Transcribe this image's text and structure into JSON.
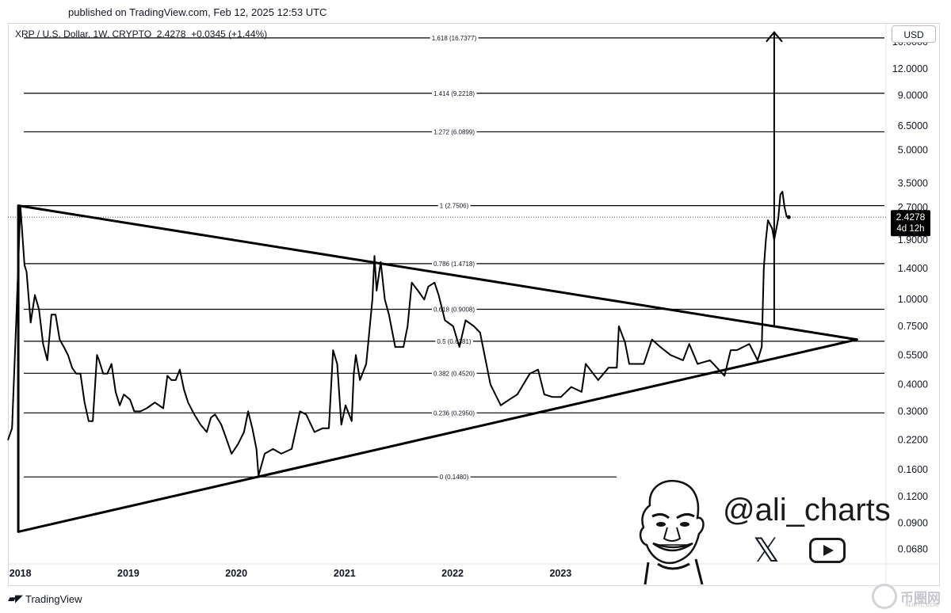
{
  "header": {
    "published": "published on TradingView.com, Feb 12, 2025 12:53 UTC"
  },
  "legend": {
    "symbol": "XRP / U.S. Dollar, 1W, CRYPTO",
    "price": "2.4278",
    "change": "+0.0345 (+1.44%)"
  },
  "currency_button": "USD",
  "footer": {
    "logo_text": "TradingView",
    "watermark_text": "币圈网",
    "watermark_sub": "ALIBTC.COM"
  },
  "author": {
    "handle": "@ali_charts",
    "x_glyph": "𝕏",
    "icons": [
      "avatar-icon",
      "x-logo-icon",
      "youtube-icon"
    ]
  },
  "chart_data": {
    "type": "line",
    "title": "",
    "y_scale": "log",
    "ylim": [
      0.058,
      19.5
    ],
    "x_range": [
      "2017-11-20",
      "2026-01-05"
    ],
    "line_color": "#000000",
    "y_ticks": [
      "16.0000",
      "12.0000",
      "9.0000",
      "6.5000",
      "5.0000",
      "3.5000",
      "2.7000",
      "1.9000",
      "1.4000",
      "1.0000",
      "0.7500",
      "0.5500",
      "0.4000",
      "0.3000",
      "0.2200",
      "0.1600",
      "0.1200",
      "0.0900",
      "0.0680"
    ],
    "x_ticks": [
      "2018",
      "2019",
      "2020",
      "2021",
      "2022",
      "2023"
    ],
    "current_price_label": {
      "value": "2.4278",
      "sub": "4d 12h"
    },
    "fib_levels": [
      {
        "label": "0 (0.1480)",
        "value": 0.148
      },
      {
        "label": "0.236 (0.2950)",
        "value": 0.295
      },
      {
        "label": "0.382 (0.4520)",
        "value": 0.452
      },
      {
        "label": "0.5 (0.6381)",
        "value": 0.6381
      },
      {
        "label": "0.618 (0.9008)",
        "value": 0.9008
      },
      {
        "label": "0.786 (1.4718)",
        "value": 1.4718
      },
      {
        "label": "1 (2.7506)",
        "value": 2.7506
      },
      {
        "label": "1.272 (6.0899)",
        "value": 6.0899
      },
      {
        "label": "1.414 (9.2218)",
        "value": 9.2218
      },
      {
        "label": "1.618 (16.7377)",
        "value": 16.7377
      }
    ],
    "series": [
      {
        "points": [
          [
            "2017-11-20",
            0.22
          ],
          [
            "2017-12-04",
            0.25
          ],
          [
            "2017-12-18",
            0.8
          ],
          [
            "2018-01-01",
            2.75
          ],
          [
            "2018-01-08",
            2.0
          ],
          [
            "2018-01-15",
            1.45
          ],
          [
            "2018-01-22",
            1.35
          ],
          [
            "2018-02-05",
            0.78
          ],
          [
            "2018-02-19",
            1.05
          ],
          [
            "2018-03-05",
            0.9
          ],
          [
            "2018-03-19",
            0.62
          ],
          [
            "2018-04-02",
            0.52
          ],
          [
            "2018-04-16",
            0.85
          ],
          [
            "2018-04-30",
            0.85
          ],
          [
            "2018-05-14",
            0.65
          ],
          [
            "2018-05-28",
            0.6
          ],
          [
            "2018-06-11",
            0.55
          ],
          [
            "2018-06-25",
            0.48
          ],
          [
            "2018-07-09",
            0.45
          ],
          [
            "2018-07-23",
            0.45
          ],
          [
            "2018-08-06",
            0.33
          ],
          [
            "2018-08-20",
            0.27
          ],
          [
            "2018-09-03",
            0.27
          ],
          [
            "2018-09-17",
            0.55
          ],
          [
            "2018-09-24",
            0.52
          ],
          [
            "2018-10-08",
            0.45
          ],
          [
            "2018-10-22",
            0.45
          ],
          [
            "2018-11-05",
            0.5
          ],
          [
            "2018-11-19",
            0.37
          ],
          [
            "2018-12-03",
            0.32
          ],
          [
            "2018-12-17",
            0.36
          ],
          [
            "2019-01-07",
            0.34
          ],
          [
            "2019-01-21",
            0.3
          ],
          [
            "2019-02-11",
            0.3
          ],
          [
            "2019-03-04",
            0.31
          ],
          [
            "2019-04-01",
            0.33
          ],
          [
            "2019-04-29",
            0.31
          ],
          [
            "2019-05-13",
            0.44
          ],
          [
            "2019-05-27",
            0.42
          ],
          [
            "2019-06-10",
            0.42
          ],
          [
            "2019-06-24",
            0.47
          ],
          [
            "2019-07-08",
            0.38
          ],
          [
            "2019-07-22",
            0.33
          ],
          [
            "2019-08-12",
            0.29
          ],
          [
            "2019-09-02",
            0.26
          ],
          [
            "2019-09-23",
            0.24
          ],
          [
            "2019-10-07",
            0.28
          ],
          [
            "2019-10-21",
            0.29
          ],
          [
            "2019-11-11",
            0.26
          ],
          [
            "2019-11-25",
            0.23
          ],
          [
            "2019-12-16",
            0.19
          ],
          [
            "2020-01-06",
            0.21
          ],
          [
            "2020-01-27",
            0.24
          ],
          [
            "2020-02-10",
            0.3
          ],
          [
            "2020-02-24",
            0.25
          ],
          [
            "2020-03-09",
            0.2
          ],
          [
            "2020-03-16",
            0.15
          ],
          [
            "2020-04-06",
            0.19
          ],
          [
            "2020-05-04",
            0.2
          ],
          [
            "2020-06-01",
            0.19
          ],
          [
            "2020-07-06",
            0.2
          ],
          [
            "2020-08-03",
            0.3
          ],
          [
            "2020-08-24",
            0.29
          ],
          [
            "2020-09-21",
            0.24
          ],
          [
            "2020-10-19",
            0.25
          ],
          [
            "2020-11-09",
            0.25
          ],
          [
            "2020-11-23",
            0.58
          ],
          [
            "2020-12-07",
            0.5
          ],
          [
            "2020-12-21",
            0.26
          ],
          [
            "2021-01-04",
            0.32
          ],
          [
            "2021-01-25",
            0.27
          ],
          [
            "2021-02-01",
            0.45
          ],
          [
            "2021-02-08",
            0.55
          ],
          [
            "2021-02-22",
            0.42
          ],
          [
            "2021-03-15",
            0.5
          ],
          [
            "2021-04-05",
            1.0
          ],
          [
            "2021-04-12",
            1.6
          ],
          [
            "2021-04-19",
            1.1
          ],
          [
            "2021-05-03",
            1.5
          ],
          [
            "2021-05-17",
            1.0
          ],
          [
            "2021-05-31",
            0.85
          ],
          [
            "2021-06-21",
            0.6
          ],
          [
            "2021-07-19",
            0.6
          ],
          [
            "2021-08-02",
            0.75
          ],
          [
            "2021-08-16",
            1.2
          ],
          [
            "2021-09-06",
            1.1
          ],
          [
            "2021-09-27",
            1.0
          ],
          [
            "2021-10-11",
            1.15
          ],
          [
            "2021-11-01",
            1.2
          ],
          [
            "2021-11-15",
            1.05
          ],
          [
            "2021-12-06",
            0.8
          ],
          [
            "2022-01-03",
            0.75
          ],
          [
            "2022-01-24",
            0.6
          ],
          [
            "2022-02-14",
            0.8
          ],
          [
            "2022-03-14",
            0.75
          ],
          [
            "2022-04-04",
            0.7
          ],
          [
            "2022-05-09",
            0.4
          ],
          [
            "2022-06-13",
            0.32
          ],
          [
            "2022-07-11",
            0.34
          ],
          [
            "2022-08-08",
            0.36
          ],
          [
            "2022-09-19",
            0.45
          ],
          [
            "2022-10-17",
            0.47
          ],
          [
            "2022-11-07",
            0.36
          ],
          [
            "2022-12-05",
            0.35
          ],
          [
            "2023-01-02",
            0.35
          ],
          [
            "2023-02-06",
            0.39
          ],
          [
            "2023-03-13",
            0.37
          ],
          [
            "2023-03-27",
            0.5
          ],
          [
            "2023-05-08",
            0.42
          ],
          [
            "2023-06-12",
            0.48
          ],
          [
            "2023-07-10",
            0.48
          ],
          [
            "2023-07-17",
            0.75
          ],
          [
            "2023-08-07",
            0.63
          ],
          [
            "2023-08-21",
            0.5
          ],
          [
            "2023-10-09",
            0.5
          ],
          [
            "2023-11-06",
            0.65
          ],
          [
            "2023-12-04",
            0.6
          ],
          [
            "2024-01-08",
            0.55
          ],
          [
            "2024-02-19",
            0.52
          ],
          [
            "2024-03-11",
            0.62
          ],
          [
            "2024-04-08",
            0.5
          ],
          [
            "2024-05-20",
            0.52
          ],
          [
            "2024-07-08",
            0.44
          ],
          [
            "2024-07-29",
            0.58
          ],
          [
            "2024-08-19",
            0.58
          ],
          [
            "2024-09-30",
            0.62
          ],
          [
            "2024-10-28",
            0.52
          ],
          [
            "2024-11-11",
            0.6
          ],
          [
            "2024-11-18",
            1.4
          ],
          [
            "2024-11-25",
            1.9
          ],
          [
            "2024-12-02",
            2.35
          ],
          [
            "2024-12-16",
            2.15
          ],
          [
            "2024-12-23",
            1.9
          ],
          [
            "2025-01-06",
            2.4
          ],
          [
            "2025-01-13",
            3.1
          ],
          [
            "2025-01-20",
            3.2
          ],
          [
            "2025-01-27",
            2.7
          ],
          [
            "2025-02-03",
            2.45
          ],
          [
            "2025-02-10",
            2.4278
          ]
        ]
      }
    ],
    "annotations": {
      "triangle": [
        [
          "2017-12-25",
          2.75
        ],
        [
          "2025-09-29",
          0.65
        ],
        [
          "2017-12-25",
          0.082
        ]
      ],
      "lower_trendline": [
        [
          "2020-03-16",
          0.148
        ],
        [
          "2025-09-29",
          0.65
        ]
      ],
      "target_arrow": {
        "x": "2024-12-23",
        "from": 0.75,
        "to": 17.8
      }
    }
  }
}
